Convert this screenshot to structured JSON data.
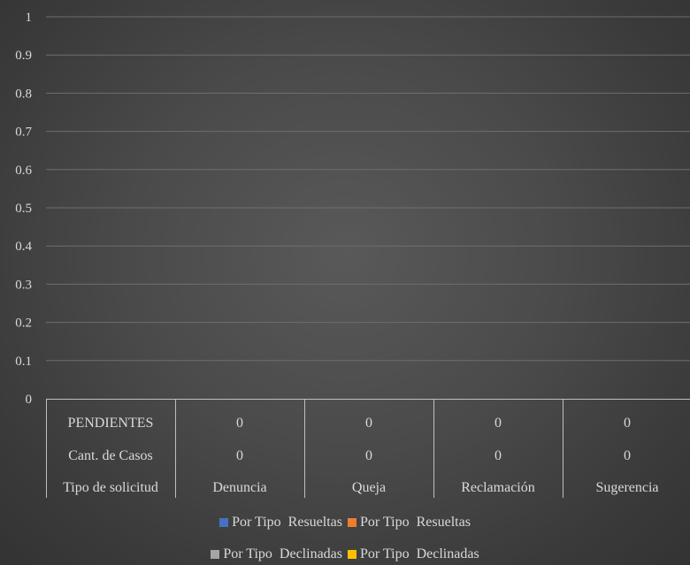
{
  "chart_data": {
    "type": "bar",
    "title": "",
    "xlabel": "",
    "ylabel": "",
    "ylim": [
      0,
      1
    ],
    "yticks": [
      "0",
      "0.1",
      "0.2",
      "0.3",
      "0.4",
      "0.5",
      "0.6",
      "0.7",
      "0.8",
      "0.9",
      "1"
    ],
    "categories": [
      "Denuncia",
      "Queja",
      "Reclamación",
      "Sugerencia"
    ],
    "series": [
      {
        "name": "Por Tipo  Resueltas",
        "color": "#4472c4",
        "values": [
          0,
          0,
          0,
          0
        ]
      },
      {
        "name": "Por Tipo  Resueltas",
        "color": "#ed7d31",
        "values": [
          0,
          0,
          0,
          0
        ]
      },
      {
        "name": "Por Tipo  Declinadas",
        "color": "#a5a5a5",
        "values": [
          0,
          0,
          0,
          0
        ]
      },
      {
        "name": "Por Tipo  Declinadas",
        "color": "#ffc000",
        "values": [
          0,
          0,
          0,
          0
        ]
      }
    ],
    "data_table": {
      "rows": [
        {
          "label": "PENDIENTES",
          "values": [
            "0",
            "0",
            "0",
            "0"
          ]
        },
        {
          "label": "Cant. de Casos",
          "values": [
            "0",
            "0",
            "0",
            "0"
          ]
        }
      ],
      "category_row_label": "Tipo de solicitud"
    },
    "grid": true,
    "legend": "bottom"
  }
}
